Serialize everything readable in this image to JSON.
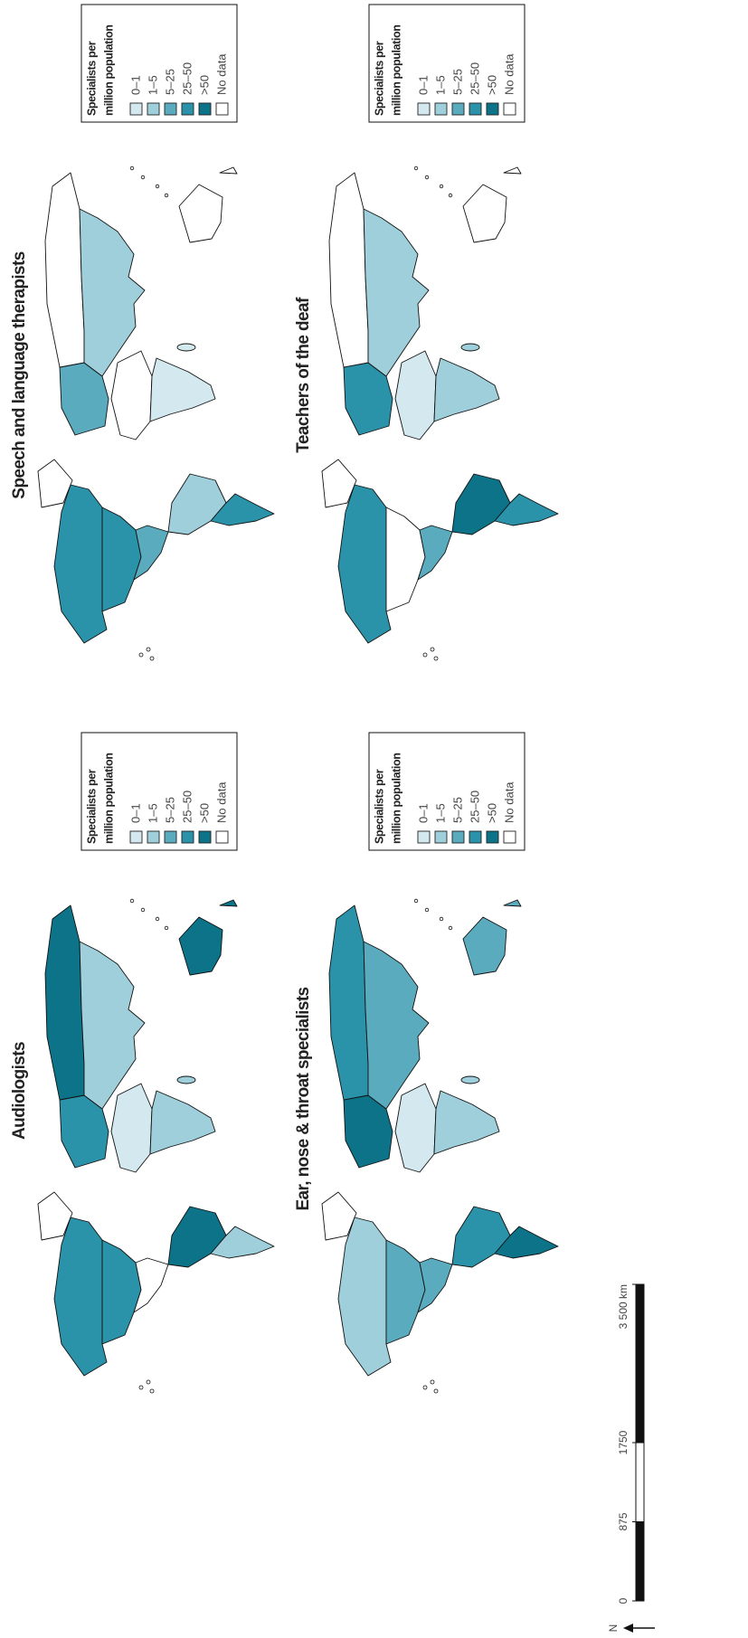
{
  "maps": [
    {
      "title": "Audiologists"
    },
    {
      "title": "Speech and language therapists"
    },
    {
      "title": "Ear, nose & throat specialists"
    },
    {
      "title": "Teachers of the deaf"
    }
  ],
  "legend": {
    "title_lines": [
      "Specialists per",
      "million population"
    ],
    "items": [
      {
        "label": "0–1",
        "color": "#d3e9ef"
      },
      {
        "label": "1–5",
        "color": "#9fcfdb"
      },
      {
        "label": "5–25",
        "color": "#5aabbe"
      },
      {
        "label": "25–50",
        "color": "#2b93a9"
      },
      {
        "label": ">50",
        "color": "#0d7388"
      },
      {
        "label": "No data",
        "color": "#ffffff"
      }
    ]
  },
  "scale_bar": {
    "ticks": [
      0,
      875,
      1750,
      {
        "value": 3500,
        "label": "3 500 km"
      }
    ]
  },
  "north_label": "N"
}
